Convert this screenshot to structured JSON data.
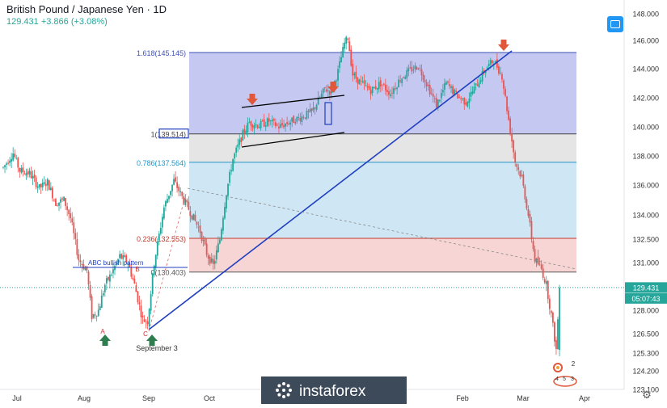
{
  "header": {
    "title": "British Pound / Japanese Yen · 1D",
    "price_line": "129.431  +3.866 (+3.08%)"
  },
  "chart_data": {
    "type": "candlestick",
    "symbol": "British Pound / Japanese Yen",
    "timeframe": "1D",
    "last_price": 129.431,
    "change": 3.866,
    "change_pct": 3.08,
    "countdown": "05:07:43",
    "x_ticks": [
      "Jul",
      "Aug",
      "Sep",
      "Oct",
      "Feb",
      "Mar",
      "Apr"
    ],
    "y_ticks": [
      "148.000",
      "146.000",
      "144.000",
      "142.000",
      "140.000",
      "138.000",
      "136.000",
      "134.000",
      "132.500",
      "131.000",
      "129.431",
      "128.000",
      "126.500",
      "125.300",
      "124.200",
      "123.100"
    ],
    "fib_levels": [
      {
        "label": "1.618(145.145)",
        "value": 145.145,
        "color": "#3f51b5"
      },
      {
        "label": "1(139.514)",
        "value": 139.514,
        "color": "#444444"
      },
      {
        "label": "0.786(137.564)",
        "value": 137.564,
        "color": "#2196c8"
      },
      {
        "label": "0.236(132.553)",
        "value": 132.553,
        "color": "#c0392b"
      },
      {
        "label": "0(130.403)",
        "value": 130.403,
        "color": "#555555"
      }
    ],
    "annotations": {
      "pattern": "ABC bullish pattern",
      "point_a": "A",
      "point_b": "B",
      "point_c": "C",
      "date_note": "September 3",
      "wave_2": "2",
      "wave_3": "3",
      "wave_4": "4",
      "wave_5": "5"
    },
    "candles": []
  },
  "colors": {
    "up": "#26a69a",
    "down": "#ef5350",
    "trendline": "#1f3fbf",
    "last_price_line": "#26a69a",
    "arrow_down": "#e0573a",
    "arrow_up": "#2e7d4f"
  },
  "watermark": "instaforex"
}
